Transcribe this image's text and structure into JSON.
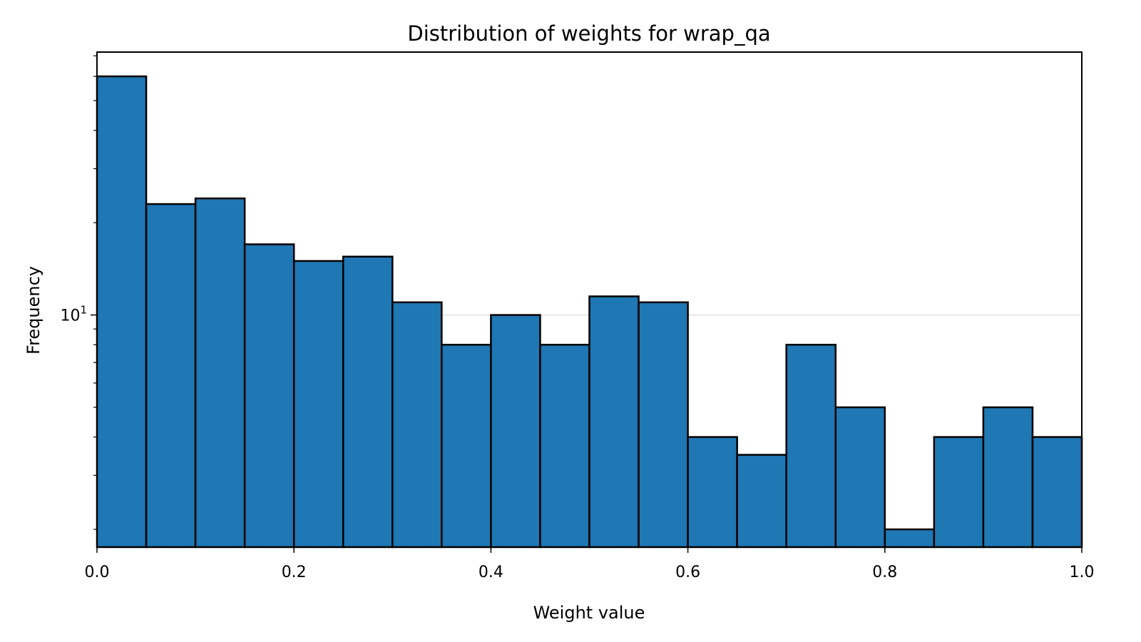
{
  "chart_data": {
    "type": "bar",
    "title": "Distribution of weights for wrap_qa",
    "xlabel": "Weight value",
    "ylabel": "Frequency",
    "bin_edges": [
      0.0,
      0.05,
      0.1,
      0.15,
      0.2,
      0.25,
      0.3,
      0.35,
      0.4,
      0.45,
      0.5,
      0.55,
      0.6,
      0.65,
      0.7,
      0.75,
      0.8,
      0.85,
      0.9,
      0.95,
      1.0
    ],
    "values": [
      60,
      23,
      24,
      17,
      15,
      15.5,
      11,
      8,
      10,
      8,
      11.5,
      11,
      4,
      3.5,
      8,
      5,
      2,
      4,
      5,
      4
    ],
    "xlim": [
      0.0,
      1.0
    ],
    "ylim": [
      1.75,
      72
    ],
    "yscale": "log",
    "x_ticks": [
      0.0,
      0.2,
      0.4,
      0.6,
      0.8,
      1.0
    ],
    "x_tick_labels": [
      "0.0",
      "0.2",
      "0.4",
      "0.6",
      "0.8",
      "1.0"
    ],
    "y_major_ticks": [
      10
    ],
    "y_tick_labels": [
      {
        "base": "10",
        "exp": "1"
      }
    ],
    "grid": "horizontal at major y ticks",
    "legend": "none",
    "bar_color": "#1f77b4",
    "edge_color": "#000000",
    "grid_color": "#e0e0e0"
  }
}
